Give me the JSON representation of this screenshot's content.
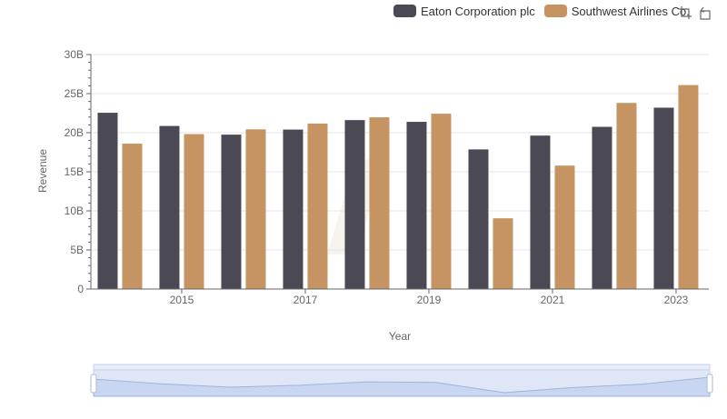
{
  "legend": {
    "items": [
      {
        "label": "Eaton Corporation plc",
        "color": "#4a4954"
      },
      {
        "label": "Southwest Airlines Co.",
        "color": "#c69463"
      }
    ]
  },
  "toolbox": {
    "icons": [
      "zoom-icon",
      "zoom-reset-icon"
    ]
  },
  "chart_data": {
    "type": "bar",
    "title": "",
    "xlabel": "Year",
    "ylabel": "Revenue",
    "categories": [
      "2014",
      "2015",
      "2016",
      "2017",
      "2018",
      "2019",
      "2020",
      "2021",
      "2022",
      "2023"
    ],
    "x_tick_labels": [
      "2015",
      "2017",
      "2019",
      "2021",
      "2023"
    ],
    "y_tick_labels": [
      "0",
      "5B",
      "10B",
      "15B",
      "20B",
      "25B",
      "30B"
    ],
    "ylim": [
      0,
      30000000000
    ],
    "grid": true,
    "legend_position": "top-right",
    "series": [
      {
        "name": "Eaton Corporation plc",
        "color": "#4a4954",
        "values": [
          22550000000,
          20860000000,
          19750000000,
          20400000000,
          21610000000,
          21390000000,
          17860000000,
          19630000000,
          20750000000,
          23200000000
        ]
      },
      {
        "name": "Southwest Airlines Co.",
        "color": "#c69463",
        "values": [
          18600000000,
          19820000000,
          20430000000,
          21170000000,
          21970000000,
          22430000000,
          9050000000,
          15790000000,
          23810000000,
          26090000000
        ]
      }
    ]
  }
}
